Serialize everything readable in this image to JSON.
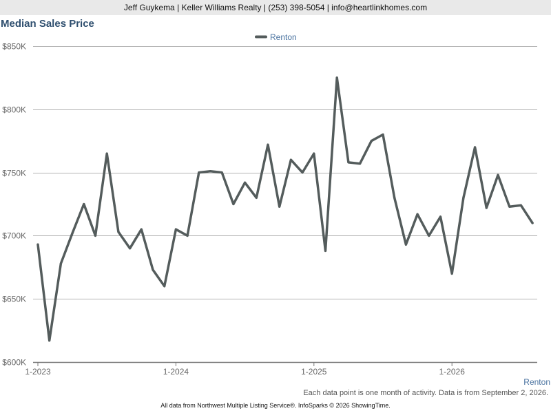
{
  "header": {
    "contact_line": "Jeff Guykema | Keller Williams Realty | (253) 398-5054 | info@heartlinkhomes.com"
  },
  "footer": {
    "series_label": "Renton",
    "note": "Each data point is one month of activity. Data is from September 2, 2026.",
    "source": "All data from Northwest Multiple Listing Service®. InfoSparks © 2026 ShowingTime."
  },
  "colors": {
    "line": "#545c5c",
    "title": "#2f4f6f",
    "series_label": "#4a73a0",
    "grid": "#b3b3b3",
    "header_bg": "#e9e9e9"
  },
  "chart_data": {
    "type": "line",
    "title": "Median Sales Price",
    "legend_position": "top-center",
    "grid": true,
    "y_ticks": [
      "$600K",
      "$650K",
      "$700K",
      "$750K",
      "$800K",
      "$850K"
    ],
    "y_tick_values": [
      600000,
      650000,
      700000,
      750000,
      800000,
      850000
    ],
    "ylim": [
      600000,
      850000
    ],
    "x_ticks": [
      "1-2023",
      "1-2024",
      "1-2025",
      "1-2026"
    ],
    "x_tick_index": [
      0,
      12,
      24,
      36
    ],
    "x": [
      "1-2023",
      "2-2023",
      "3-2023",
      "4-2023",
      "5-2023",
      "6-2023",
      "7-2023",
      "8-2023",
      "9-2023",
      "10-2023",
      "11-2023",
      "12-2023",
      "1-2024",
      "2-2024",
      "3-2024",
      "4-2024",
      "5-2024",
      "6-2024",
      "7-2024",
      "8-2024",
      "9-2024",
      "10-2024",
      "11-2024",
      "12-2024",
      "1-2025",
      "2-2025",
      "3-2025",
      "4-2025",
      "5-2025",
      "6-2025",
      "7-2025",
      "8-2025",
      "9-2025",
      "10-2025",
      "11-2025",
      "12-2025",
      "1-2026",
      "2-2026",
      "3-2026",
      "4-2026",
      "5-2026",
      "6-2026",
      "7-2026",
      "8-2026"
    ],
    "series": [
      {
        "name": "Renton",
        "values": [
          693000,
          617000,
          678000,
          702000,
          725000,
          700000,
          765000,
          703000,
          690000,
          705000,
          673000,
          660000,
          705000,
          700000,
          750000,
          751000,
          750000,
          725000,
          742000,
          730000,
          772000,
          723000,
          760000,
          750000,
          765000,
          688000,
          825000,
          758000,
          757000,
          775000,
          780000,
          730000,
          693000,
          717000,
          700000,
          715000,
          670000,
          730000,
          770000,
          722000,
          748000,
          723000,
          724000,
          710000
        ]
      }
    ]
  }
}
